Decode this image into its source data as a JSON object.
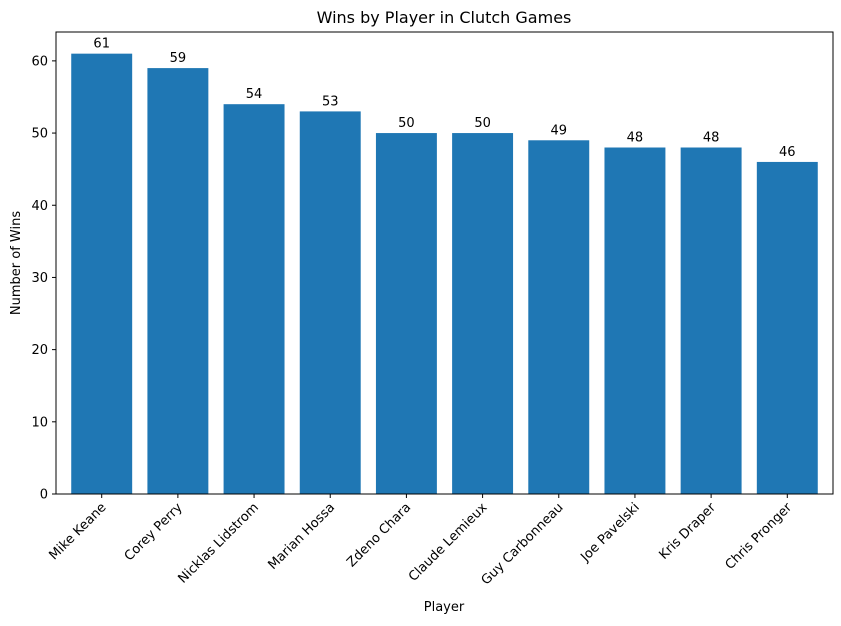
{
  "chart_data": {
    "type": "bar",
    "title": "Wins by Player in Clutch Games",
    "xlabel": "Player",
    "ylabel": "Number of Wins",
    "categories": [
      "Mike Keane",
      "Corey Perry",
      "Nicklas Lidstrom",
      "Marian Hossa",
      "Zdeno Chara",
      "Claude Lemieux",
      "Guy Carbonneau",
      "Joe Pavelski",
      "Kris Draper",
      "Chris Pronger"
    ],
    "values": [
      61,
      59,
      54,
      53,
      50,
      50,
      49,
      48,
      48,
      46
    ],
    "ylim": [
      0,
      64
    ],
    "yticks": [
      0,
      10,
      20,
      30,
      40,
      50,
      60
    ],
    "bar_color": "#1f77b4",
    "grid": false,
    "data_labels": true,
    "xtick_rotation": 45
  }
}
